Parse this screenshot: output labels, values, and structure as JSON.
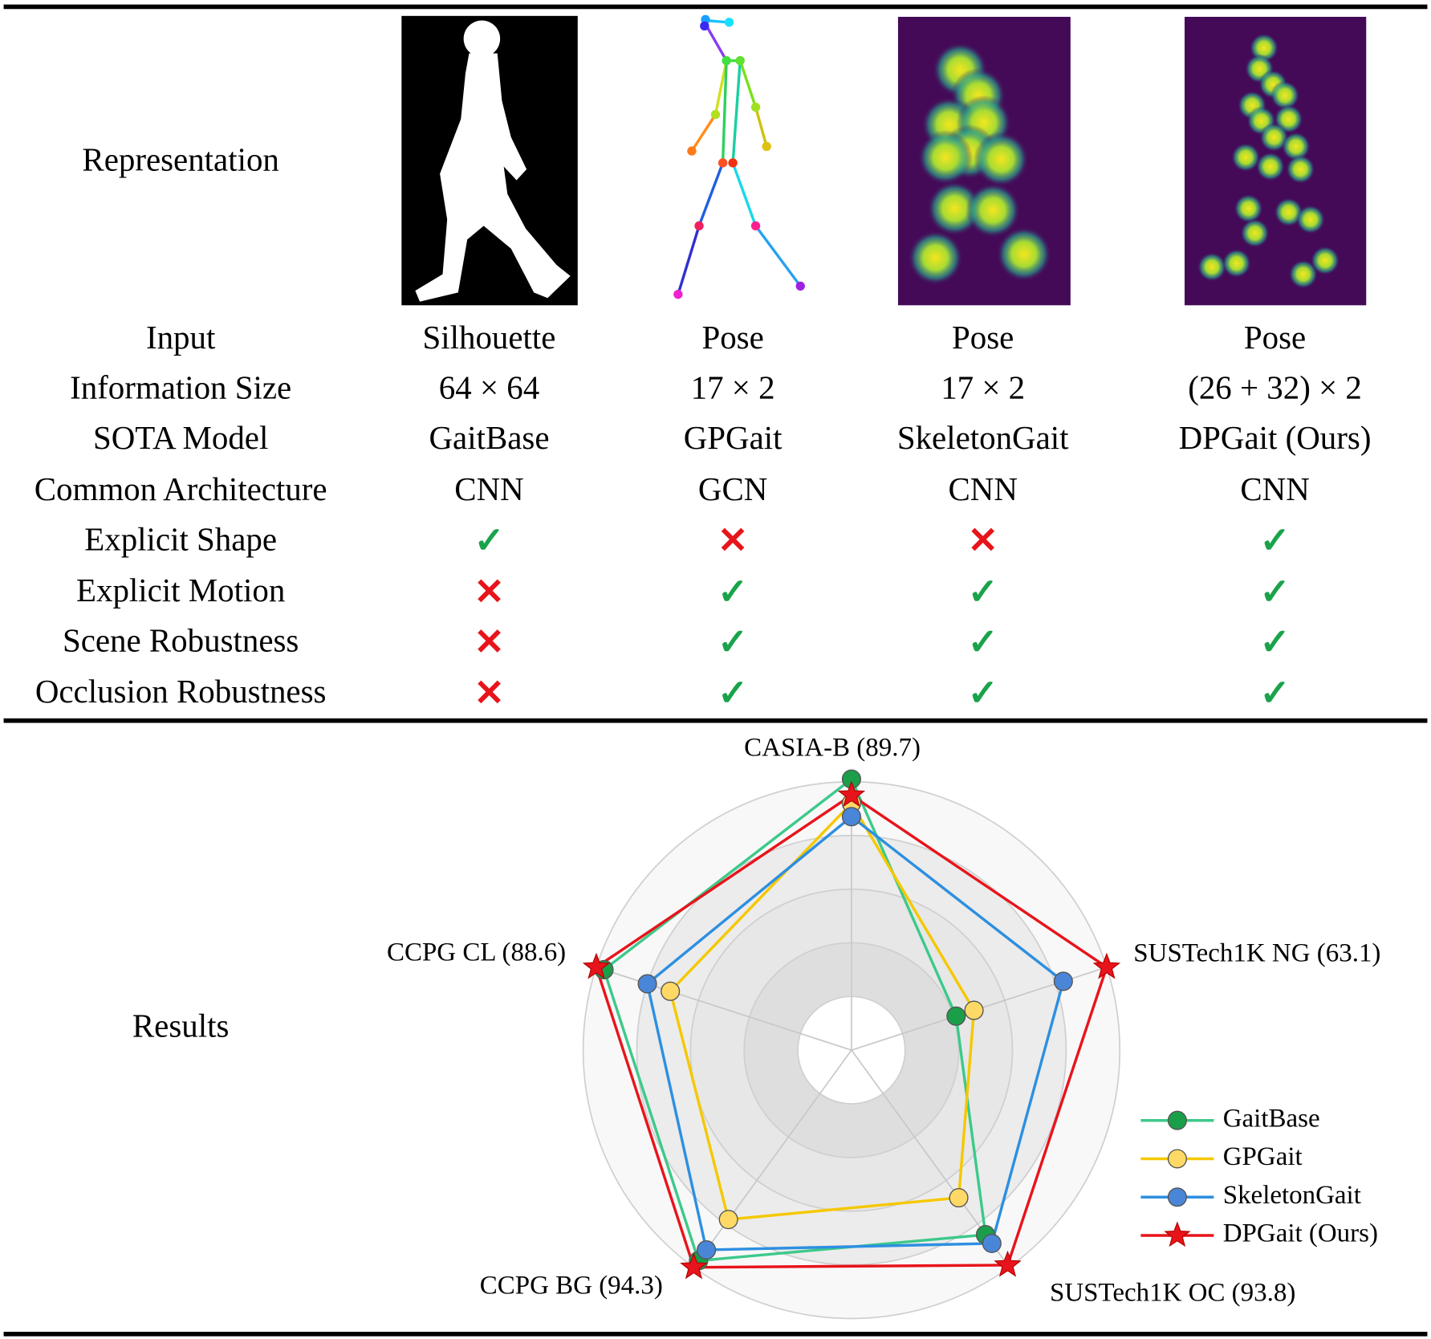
{
  "table": {
    "representation_label": "Representation",
    "rows": [
      [
        "Input",
        "Silhouette",
        "Pose",
        "Pose",
        "Pose"
      ],
      [
        "Information Size",
        "64 × 64",
        "17 × 2",
        "17 × 2",
        "(26 + 32) × 2"
      ],
      [
        "SOTA Model",
        "GaitBase",
        "GPGait",
        "SkeletonGait",
        "DPGait (Ours)"
      ],
      [
        "Common Architecture",
        "CNN",
        "GCN",
        "CNN",
        "CNN"
      ],
      [
        "Explicit Shape",
        "✓",
        "✕",
        "✕",
        "✓"
      ],
      [
        "Explicit Motion",
        "✕",
        "✓",
        "✓",
        "✓"
      ],
      [
        "Scene Robustness",
        "✕",
        "✓",
        "✓",
        "✓"
      ],
      [
        "Occlusion Robustness",
        "✕",
        "✓",
        "✓",
        "✓"
      ]
    ],
    "results_label": "Results"
  },
  "chart_data": {
    "type": "radar",
    "categories": [
      "CASIA-B (89.7)",
      "SUSTech1K NG (63.1)",
      "SUSTech1K OC (93.8)",
      "CCPG BG (94.3)",
      "CCPG CL (88.6)"
    ],
    "rlim": [
      0,
      1
    ],
    "rticks": [
      0.2,
      0.4,
      0.6,
      0.8,
      1
    ],
    "grid": true,
    "legend": "lower right",
    "series": [
      {
        "name": "GaitBase",
        "color": "#3dc98a",
        "marker": "circle",
        "marker_color": "#1a9e4a",
        "values": [
          1.01,
          0.41,
          0.85,
          0.97,
          0.97
        ]
      },
      {
        "name": "GPGait",
        "color": "#f5c800",
        "marker": "circle",
        "marker_color": "#ffd966",
        "values": [
          0.92,
          0.48,
          0.68,
          0.78,
          0.71
        ]
      },
      {
        "name": "SkeletonGait",
        "color": "#2d8fe0",
        "marker": "circle",
        "marker_color": "#4a86d8",
        "values": [
          0.87,
          0.83,
          0.89,
          0.92,
          0.8
        ]
      },
      {
        "name": "DPGait (Ours)",
        "color": "#e8141b",
        "marker": "star",
        "marker_color": "#e8141b",
        "values": [
          0.95,
          1,
          0.99,
          1,
          1
        ]
      }
    ]
  }
}
